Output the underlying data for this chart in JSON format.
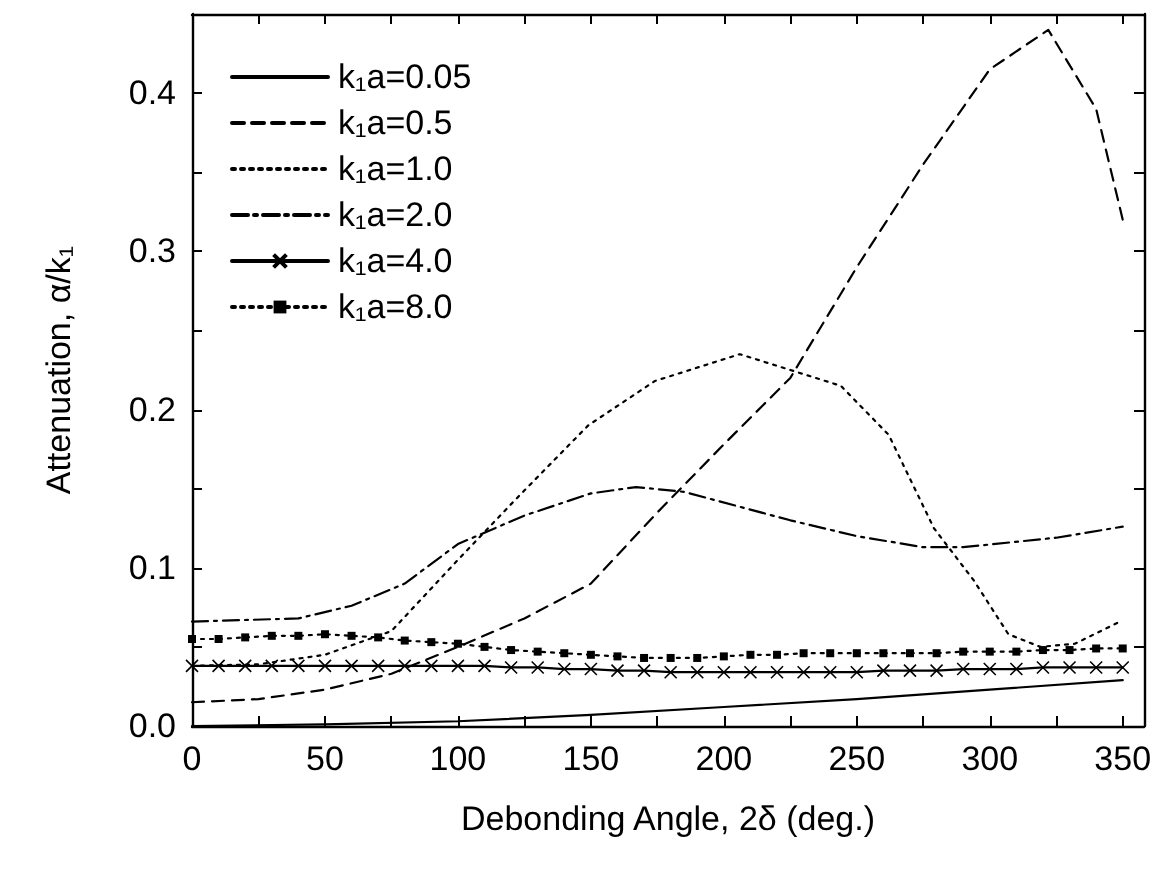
{
  "chart_data": {
    "type": "line",
    "xlabel": "Debonding Angle, 2δ (deg.)",
    "ylabel": "Attenuation, α/k₁",
    "xlim": [
      0,
      358
    ],
    "ylim": [
      0,
      0.45
    ],
    "xticks": [
      0,
      {
        "value": 25,
        "label": null
      },
      50,
      {
        "value": 75,
        "label": null
      },
      100,
      {
        "value": 125,
        "label": null
      },
      150,
      {
        "value": 175,
        "label": null
      },
      200,
      {
        "value": 225,
        "label": null
      },
      250,
      {
        "value": 275,
        "label": null
      },
      300,
      {
        "value": 325,
        "label": null
      },
      350
    ],
    "yticks": [
      {
        "value": 0,
        "label": "0.0"
      },
      {
        "value": 0.05,
        "label": null
      },
      0.1,
      {
        "value": 0.15,
        "label": null
      },
      0.2,
      {
        "value": 0.25,
        "label": null
      },
      0.3,
      {
        "value": 0.35,
        "label": null
      },
      0.4
    ],
    "grid": false,
    "legend": "top left",
    "series": [
      {
        "name": "k₁a=0.05",
        "color": "#000000",
        "line_style": "solid",
        "marker": "none",
        "x": [
          0,
          50,
          100,
          150,
          200,
          250,
          300,
          350
        ],
        "values": [
          0.0,
          0.001,
          0.003,
          0.007,
          0.012,
          0.017,
          0.023,
          0.029
        ]
      },
      {
        "name": "k₁a=0.5",
        "color": "#000000",
        "line_style": "dashed",
        "marker": "none",
        "x": [
          0,
          25,
          50,
          75,
          100,
          125,
          150,
          175,
          200,
          225,
          250,
          275,
          300,
          322,
          340,
          350
        ],
        "values": [
          0.015,
          0.017,
          0.023,
          0.033,
          0.05,
          0.068,
          0.09,
          0.135,
          0.178,
          0.22,
          0.29,
          0.355,
          0.415,
          0.44,
          0.39,
          0.32
        ]
      },
      {
        "name": "k₁a=1.0",
        "color": "#000000",
        "line_style": "dotted",
        "marker": "none",
        "x": [
          0,
          25,
          50,
          75,
          100,
          121,
          149,
          174,
          206,
          244,
          262,
          279,
          294,
          307,
          319,
          332,
          349
        ],
        "values": [
          0.038,
          0.039,
          0.045,
          0.06,
          0.105,
          0.142,
          0.19,
          0.218,
          0.235,
          0.215,
          0.184,
          0.125,
          0.092,
          0.058,
          0.05,
          0.052,
          0.066
        ]
      },
      {
        "name": "k₁a=2.0",
        "color": "#000000",
        "line_style": "dashdot",
        "marker": "none",
        "x": [
          0,
          40,
          60,
          80,
          100,
          125,
          150,
          167,
          185,
          225,
          250,
          275,
          290,
          325,
          350
        ],
        "values": [
          0.066,
          0.068,
          0.076,
          0.09,
          0.115,
          0.133,
          0.147,
          0.151,
          0.148,
          0.13,
          0.12,
          0.113,
          0.113,
          0.119,
          0.126
        ]
      },
      {
        "name": "k₁a=4.0",
        "color": "#000000",
        "line_style": "solid",
        "marker": "cross",
        "x": [
          0,
          10,
          20,
          30,
          40,
          50,
          60,
          70,
          80,
          90,
          100,
          110,
          120,
          130,
          140,
          150,
          160,
          170,
          180,
          190,
          200,
          210,
          220,
          230,
          240,
          250,
          260,
          270,
          280,
          290,
          300,
          310,
          320,
          330,
          340,
          350
        ],
        "values": [
          0.038,
          0.038,
          0.038,
          0.038,
          0.038,
          0.038,
          0.038,
          0.038,
          0.038,
          0.038,
          0.038,
          0.038,
          0.037,
          0.037,
          0.036,
          0.036,
          0.035,
          0.035,
          0.034,
          0.034,
          0.034,
          0.034,
          0.034,
          0.034,
          0.034,
          0.034,
          0.035,
          0.035,
          0.035,
          0.036,
          0.036,
          0.036,
          0.037,
          0.037,
          0.037,
          0.037
        ]
      },
      {
        "name": "k₁a=8.0",
        "color": "#000000",
        "line_style": "dotted",
        "marker": "square",
        "x": [
          0,
          10,
          20,
          30,
          40,
          50,
          60,
          70,
          80,
          90,
          100,
          110,
          120,
          130,
          140,
          150,
          160,
          170,
          180,
          190,
          200,
          210,
          220,
          230,
          240,
          250,
          260,
          270,
          280,
          290,
          300,
          310,
          320,
          330,
          340,
          350
        ],
        "values": [
          0.055,
          0.055,
          0.056,
          0.057,
          0.057,
          0.058,
          0.057,
          0.056,
          0.054,
          0.053,
          0.052,
          0.05,
          0.048,
          0.047,
          0.046,
          0.045,
          0.044,
          0.043,
          0.043,
          0.043,
          0.044,
          0.045,
          0.045,
          0.046,
          0.046,
          0.046,
          0.046,
          0.046,
          0.046,
          0.047,
          0.047,
          0.047,
          0.048,
          0.048,
          0.049,
          0.049
        ]
      }
    ]
  }
}
